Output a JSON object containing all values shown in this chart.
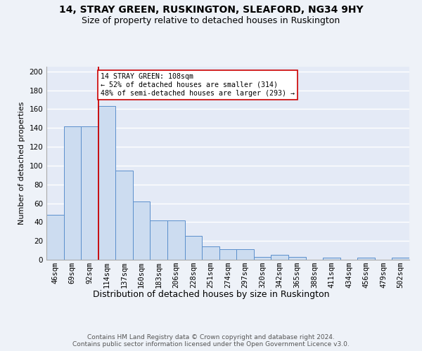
{
  "title1": "14, STRAY GREEN, RUSKINGTON, SLEAFORD, NG34 9HY",
  "title2": "Size of property relative to detached houses in Ruskington",
  "xlabel": "Distribution of detached houses by size in Ruskington",
  "ylabel": "Number of detached properties",
  "bar_labels": [
    "46sqm",
    "69sqm",
    "92sqm",
    "114sqm",
    "137sqm",
    "160sqm",
    "183sqm",
    "206sqm",
    "228sqm",
    "251sqm",
    "274sqm",
    "297sqm",
    "320sqm",
    "342sqm",
    "365sqm",
    "388sqm",
    "411sqm",
    "434sqm",
    "456sqm",
    "479sqm",
    "502sqm"
  ],
  "bar_values": [
    48,
    142,
    142,
    163,
    95,
    62,
    42,
    42,
    25,
    14,
    11,
    11,
    3,
    5,
    3,
    0,
    2,
    0,
    2,
    0,
    2
  ],
  "bar_color": "#ccdcf0",
  "bar_edge_color": "#5b8fcc",
  "annotation_text": "14 STRAY GREEN: 108sqm\n← 52% of detached houses are smaller (314)\n48% of semi-detached houses are larger (293) →",
  "vline_color": "#cc0000",
  "annotation_box_color": "#ffffff",
  "annotation_box_edge": "#cc0000",
  "footnote": "Contains HM Land Registry data © Crown copyright and database right 2024.\nContains public sector information licensed under the Open Government Licence v3.0.",
  "ylim": [
    0,
    205
  ],
  "yticks": [
    0,
    20,
    40,
    60,
    80,
    100,
    120,
    140,
    160,
    180,
    200
  ],
  "background_color": "#eef2f8",
  "plot_background": "#e4eaf6",
  "grid_color": "#ffffff",
  "title1_fontsize": 10,
  "title2_fontsize": 9,
  "xlabel_fontsize": 9,
  "ylabel_fontsize": 8,
  "tick_fontsize": 7.5,
  "footnote_fontsize": 6.5
}
